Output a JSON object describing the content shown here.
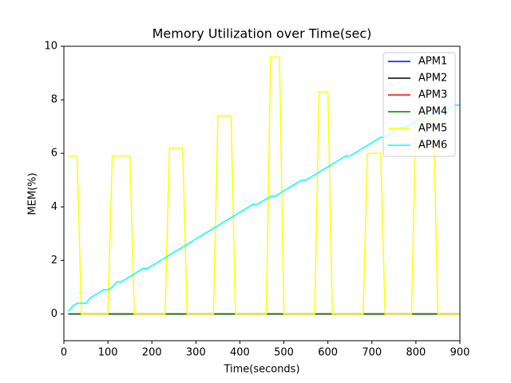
{
  "chart_data": {
    "type": "line",
    "title": "Memory Utilization over Time(sec)",
    "x_label": "Time(seconds)",
    "y_label": "MEM(%)",
    "xlim": [
      0,
      900
    ],
    "ylim": [
      -1,
      10
    ],
    "xticks": [
      0,
      100,
      200,
      300,
      400,
      500,
      600,
      700,
      800,
      900
    ],
    "yticks": [
      0,
      2,
      4,
      6,
      8,
      10
    ],
    "grid": false,
    "legend": "upper right",
    "x": [
      10,
      20,
      30,
      40,
      50,
      60,
      70,
      80,
      90,
      100,
      110,
      120,
      130,
      140,
      150,
      160,
      170,
      180,
      190,
      200,
      210,
      220,
      230,
      240,
      250,
      260,
      270,
      280,
      290,
      300,
      310,
      320,
      330,
      340,
      350,
      360,
      370,
      380,
      390,
      400,
      410,
      420,
      430,
      440,
      450,
      460,
      470,
      480,
      490,
      500,
      510,
      520,
      530,
      540,
      550,
      560,
      570,
      580,
      590,
      600,
      610,
      620,
      630,
      640,
      650,
      660,
      670,
      680,
      690,
      700,
      710,
      720,
      730,
      740,
      750,
      760,
      770,
      780,
      790,
      800,
      810,
      820,
      830,
      840,
      850,
      860,
      870,
      880,
      890,
      900
    ],
    "series": [
      {
        "name": "APM1",
        "color": "#0000ff",
        "values": [
          0,
          0,
          0,
          0,
          0,
          0,
          0,
          0,
          0,
          0,
          0,
          0,
          0,
          0,
          0,
          0,
          0,
          0,
          0,
          0,
          0,
          0,
          0,
          0,
          0,
          0,
          0,
          0,
          0,
          0,
          0,
          0,
          0,
          0,
          0,
          0,
          0,
          0,
          0,
          0,
          0,
          0,
          0,
          0,
          0,
          0,
          0,
          0,
          0,
          0,
          0,
          0,
          0,
          0,
          0,
          0,
          0,
          0,
          0,
          0,
          0,
          0,
          0,
          0,
          0,
          0,
          0,
          0,
          0,
          0,
          0,
          0,
          0,
          0,
          0,
          0,
          0,
          0,
          0,
          0,
          0,
          0,
          0,
          0,
          0,
          0,
          0,
          0,
          0,
          0
        ]
      },
      {
        "name": "APM2",
        "color": "#000000",
        "values": [
          0,
          0,
          0,
          0,
          0,
          0,
          0,
          0,
          0,
          0,
          0,
          0,
          0,
          0,
          0,
          0,
          0,
          0,
          0,
          0,
          0,
          0,
          0,
          0,
          0,
          0,
          0,
          0,
          0,
          0,
          0,
          0,
          0,
          0,
          0,
          0,
          0,
          0,
          0,
          0,
          0,
          0,
          0,
          0,
          0,
          0,
          0,
          0,
          0,
          0,
          0,
          0,
          0,
          0,
          0,
          0,
          0,
          0,
          0,
          0,
          0,
          0,
          0,
          0,
          0,
          0,
          0,
          0,
          0,
          0,
          0,
          0,
          0,
          0,
          0,
          0,
          0,
          0,
          0,
          0,
          0,
          0,
          0,
          0,
          0,
          0,
          0,
          0,
          0,
          0
        ]
      },
      {
        "name": "APM3",
        "color": "#ff0000",
        "values": [
          0,
          0,
          0,
          0,
          0,
          0,
          0,
          0,
          0,
          0,
          0,
          0,
          0,
          0,
          0,
          0,
          0,
          0,
          0,
          0,
          0,
          0,
          0,
          0,
          0,
          0,
          0,
          0,
          0,
          0,
          0,
          0,
          0,
          0,
          0,
          0,
          0,
          0,
          0,
          0,
          0,
          0,
          0,
          0,
          0,
          0,
          0,
          0,
          0,
          0,
          0,
          0,
          0,
          0,
          0,
          0,
          0,
          0,
          0,
          0,
          0,
          0,
          0,
          0,
          0,
          0,
          0,
          0,
          0,
          0,
          0,
          0,
          0,
          0,
          0,
          0,
          0,
          0,
          0,
          0,
          0,
          0,
          0,
          0,
          0,
          0,
          0,
          0,
          0,
          0
        ]
      },
      {
        "name": "APM4",
        "color": "#008000",
        "values": [
          0,
          0,
          0,
          0,
          0,
          0,
          0,
          0,
          0,
          0,
          0,
          0,
          0,
          0,
          0,
          0,
          0,
          0,
          0,
          0,
          0,
          0,
          0,
          0,
          0,
          0,
          0,
          0,
          0,
          0,
          0,
          0,
          0,
          0,
          0,
          0,
          0,
          0,
          0,
          0,
          0,
          0,
          0,
          0,
          0,
          0,
          0,
          0,
          0,
          0,
          0,
          0,
          0,
          0,
          0,
          0,
          0,
          0,
          0,
          0,
          0,
          0,
          0,
          0,
          0,
          0,
          0,
          0,
          0,
          0,
          0,
          0,
          0,
          0,
          0,
          0,
          0,
          0,
          0,
          0,
          0,
          0,
          0,
          0,
          0,
          0,
          0,
          0,
          0,
          0
        ]
      },
      {
        "name": "APM5",
        "color": "#ffff00",
        "values": [
          5.9,
          5.9,
          5.9,
          0,
          0,
          0,
          0,
          0,
          0,
          0,
          5.9,
          5.9,
          5.9,
          5.9,
          5.9,
          0,
          0,
          0,
          0,
          0,
          0,
          0,
          0,
          6.2,
          6.2,
          6.2,
          6.2,
          0,
          0,
          0,
          0,
          0,
          0,
          0,
          7.4,
          7.4,
          7.4,
          7.4,
          0,
          0,
          0,
          0,
          0,
          0,
          0,
          0,
          9.6,
          9.6,
          9.6,
          0,
          0,
          0,
          0,
          0,
          0,
          0,
          0,
          8.3,
          8.3,
          8.3,
          0,
          0,
          0,
          0,
          0,
          0,
          0,
          0,
          6.0,
          6.0,
          6.0,
          6.0,
          0,
          0,
          0,
          0,
          0,
          0,
          0,
          7.3,
          7.3,
          7.3,
          7.3,
          7.3,
          0,
          0,
          0,
          0,
          0,
          0
        ]
      },
      {
        "name": "APM6",
        "color": "#00ffff",
        "values": [
          0.1,
          0.3,
          0.4,
          0.4,
          0.4,
          0.6,
          0.7,
          0.8,
          0.9,
          0.9,
          1.0,
          1.2,
          1.2,
          1.3,
          1.4,
          1.5,
          1.6,
          1.7,
          1.7,
          1.8,
          1.9,
          2.0,
          2.1,
          2.2,
          2.3,
          2.4,
          2.5,
          2.6,
          2.7,
          2.8,
          2.9,
          3.0,
          3.1,
          3.2,
          3.3,
          3.4,
          3.5,
          3.6,
          3.7,
          3.8,
          3.9,
          4.0,
          4.1,
          4.1,
          4.2,
          4.3,
          4.4,
          4.4,
          4.5,
          4.6,
          4.7,
          4.8,
          4.9,
          5.0,
          5.0,
          5.1,
          5.2,
          5.3,
          5.4,
          5.5,
          5.6,
          5.7,
          5.8,
          5.9,
          5.9,
          6.0,
          6.1,
          6.2,
          6.3,
          6.4,
          6.5,
          6.6,
          6.6,
          6.7,
          6.8,
          6.9,
          7.0,
          7.0,
          7.1,
          7.2,
          7.3,
          7.3,
          7.4,
          7.5,
          7.5,
          7.6,
          7.7,
          7.7,
          7.8,
          7.8
        ]
      }
    ]
  }
}
